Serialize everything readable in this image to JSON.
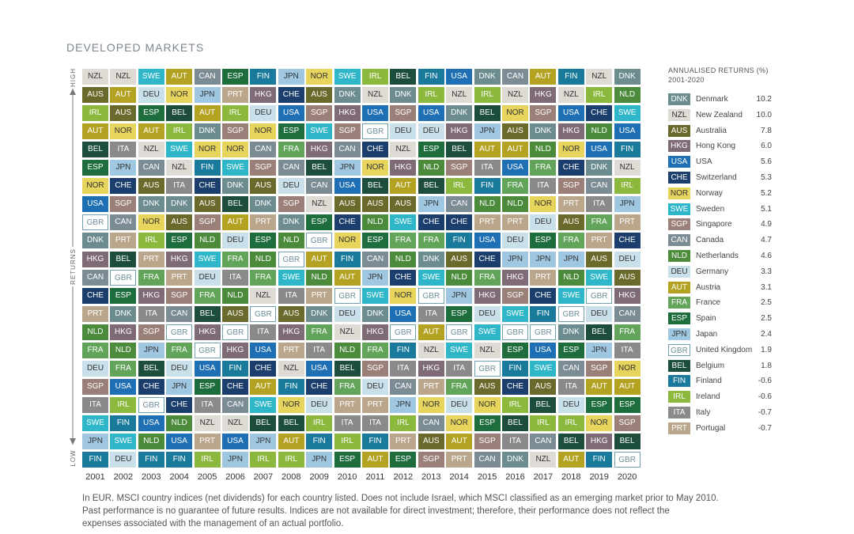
{
  "title": "DEVELOPED MARKETS",
  "axis": {
    "high": "HIGH",
    "returns": "RETURNS",
    "low": "LOW"
  },
  "years": [
    "2001",
    "2002",
    "2003",
    "2004",
    "2005",
    "2006",
    "2007",
    "2008",
    "2009",
    "2010",
    "2011",
    "2012",
    "2013",
    "2014",
    "2015",
    "2016",
    "2017",
    "2018",
    "2019",
    "2020"
  ],
  "rows": [
    [
      "NZL",
      "NZL",
      "SWE",
      "AUT",
      "CAN",
      "ESP",
      "FIN",
      "JPN",
      "NOR",
      "SWE",
      "IRL",
      "BEL",
      "FIN",
      "USA",
      "DNK",
      "CAN",
      "AUT",
      "FIN",
      "NZL",
      "DNK"
    ],
    [
      "AUS",
      "AUT",
      "DEU",
      "NOR",
      "JPN",
      "PRT",
      "HKG",
      "CHE",
      "AUS",
      "DNK",
      "NZL",
      "DNK",
      "IRL",
      "NZL",
      "IRL",
      "NZL",
      "HKG",
      "NZL",
      "IRL",
      "NLD"
    ],
    [
      "IRL",
      "AUS",
      "ESP",
      "BEL",
      "AUT",
      "IRL",
      "DEU",
      "USA",
      "SGP",
      "HKG",
      "USA",
      "SGP",
      "USA",
      "DNK",
      "BEL",
      "NOR",
      "SGP",
      "USA",
      "CHE",
      "SWE"
    ],
    [
      "AUT",
      "NOR",
      "AUT",
      "IRL",
      "DNK",
      "SGP",
      "NOR",
      "ESP",
      "SWE",
      "SGP",
      "GBR",
      "DEU",
      "DEU",
      "HKG",
      "JPN",
      "AUS",
      "DNK",
      "HKG",
      "NLD",
      "USA"
    ],
    [
      "BEL",
      "ITA",
      "NZL",
      "SWE",
      "NOR",
      "NOR",
      "CAN",
      "FRA",
      "HKG",
      "CAN",
      "CHE",
      "NZL",
      "ESP",
      "BEL",
      "AUT",
      "AUT",
      "NLD",
      "NOR",
      "USA",
      "FIN"
    ],
    [
      "ESP",
      "JPN",
      "CAN",
      "NZL",
      "FIN",
      "SWE",
      "SGP",
      "CAN",
      "BEL",
      "JPN",
      "NOR",
      "HKG",
      "NLD",
      "SGP",
      "ITA",
      "USA",
      "FRA",
      "CHE",
      "DNK",
      "NZL"
    ],
    [
      "NOR",
      "CHE",
      "AUS",
      "ITA",
      "CHE",
      "DNK",
      "AUS",
      "DEU",
      "CAN",
      "USA",
      "BEL",
      "AUT",
      "BEL",
      "IRL",
      "FIN",
      "FRA",
      "ITA",
      "SGP",
      "CAN",
      "IRL"
    ],
    [
      "USA",
      "SGP",
      "DNK",
      "DNK",
      "AUS",
      "BEL",
      "DNK",
      "SGP",
      "NZL",
      "AUS",
      "AUS",
      "AUS",
      "JPN",
      "CAN",
      "NLD",
      "NLD",
      "NOR",
      "PRT",
      "ITA",
      "JPN"
    ],
    [
      "GBR",
      "CAN",
      "NOR",
      "AUS",
      "SGP",
      "AUT",
      "PRT",
      "DNK",
      "ESP",
      "CHE",
      "NLD",
      "SWE",
      "CHE",
      "CHE",
      "PRT",
      "PRT",
      "DEU",
      "AUS",
      "FRA",
      "PRT"
    ],
    [
      "DNK",
      "PRT",
      "IRL",
      "ESP",
      "NLD",
      "DEU",
      "ESP",
      "NLD",
      "GBR",
      "NOR",
      "ESP",
      "FRA",
      "FRA",
      "FIN",
      "USA",
      "DEU",
      "ESP",
      "FRA",
      "PRT",
      "CHE"
    ],
    [
      "HKG",
      "BEL",
      "PRT",
      "HKG",
      "SWE",
      "FRA",
      "NLD",
      "GBR",
      "AUT",
      "FIN",
      "CAN",
      "NLD",
      "DNK",
      "AUS",
      "CHE",
      "JPN",
      "JPN",
      "JPN",
      "AUS",
      "DEU"
    ],
    [
      "CAN",
      "GBR",
      "FRA",
      "PRT",
      "DEU",
      "ITA",
      "FRA",
      "SWE",
      "NLD",
      "AUT",
      "JPN",
      "CHE",
      "SWE",
      "NLD",
      "FRA",
      "HKG",
      "PRT",
      "NLD",
      "SWE",
      "AUS"
    ],
    [
      "CHE",
      "ESP",
      "HKG",
      "SGP",
      "FRA",
      "NLD",
      "NZL",
      "ITA",
      "PRT",
      "GBR",
      "SWE",
      "NOR",
      "GBR",
      "JPN",
      "HKG",
      "SGP",
      "CHE",
      "SWE",
      "GBR",
      "HKG"
    ],
    [
      "PRT",
      "DNK",
      "ITA",
      "CAN",
      "BEL",
      "AUS",
      "GBR",
      "AUS",
      "DNK",
      "DEU",
      "DNK",
      "USA",
      "ITA",
      "ESP",
      "DEU",
      "SWE",
      "FIN",
      "GBR",
      "DEU",
      "CAN"
    ],
    [
      "NLD",
      "HKG",
      "SGP",
      "GBR",
      "HKG",
      "GBR",
      "ITA",
      "HKG",
      "FRA",
      "NZL",
      "HKG",
      "GBR",
      "AUT",
      "GBR",
      "SWE",
      "GBR",
      "GBR",
      "DNK",
      "BEL",
      "FRA"
    ],
    [
      "FRA",
      "NLD",
      "JPN",
      "FRA",
      "GBR",
      "HKG",
      "USA",
      "PRT",
      "ITA",
      "NLD",
      "FRA",
      "FIN",
      "NZL",
      "SWE",
      "NZL",
      "ESP",
      "USA",
      "ESP",
      "JPN",
      "ITA"
    ],
    [
      "DEU",
      "FRA",
      "BEL",
      "DEU",
      "USA",
      "FIN",
      "CHE",
      "NZL",
      "USA",
      "BEL",
      "SGP",
      "ITA",
      "HKG",
      "ITA",
      "GBR",
      "FIN",
      "SWE",
      "CAN",
      "SGP",
      "NOR"
    ],
    [
      "SGP",
      "USA",
      "CHE",
      "JPN",
      "ESP",
      "CHE",
      "AUT",
      "FIN",
      "CHE",
      "FRA",
      "DEU",
      "CAN",
      "PRT",
      "FRA",
      "AUS",
      "CHE",
      "AUS",
      "ITA",
      "AUT",
      "AUT"
    ],
    [
      "ITA",
      "IRL",
      "GBR",
      "CHE",
      "ITA",
      "CAN",
      "SWE",
      "NOR",
      "DEU",
      "PRT",
      "PRT",
      "JPN",
      "NOR",
      "DEU",
      "NOR",
      "IRL",
      "BEL",
      "DEU",
      "ESP",
      "ESP"
    ],
    [
      "SWE",
      "FIN",
      "USA",
      "NLD",
      "NZL",
      "NZL",
      "BEL",
      "BEL",
      "IRL",
      "ITA",
      "ITA",
      "IRL",
      "CAN",
      "NOR",
      "ESP",
      "BEL",
      "IRL",
      "IRL",
      "NOR",
      "SGP"
    ],
    [
      "JPN",
      "SWE",
      "NLD",
      "USA",
      "PRT",
      "USA",
      "JPN",
      "AUT",
      "FIN",
      "IRL",
      "FIN",
      "PRT",
      "AUS",
      "AUT",
      "SGP",
      "ITA",
      "CAN",
      "BEL",
      "HKG",
      "BEL"
    ],
    [
      "FIN",
      "DEU",
      "FIN",
      "FIN",
      "IRL",
      "JPN",
      "IRL",
      "IRL",
      "JPN",
      "ESP",
      "AUT",
      "ESP",
      "SGP",
      "PRT",
      "CAN",
      "DNK",
      "NZL",
      "AUT",
      "FIN",
      "GBR"
    ]
  ],
  "legend": {
    "heading": [
      "ANNUALISED RETURNS (%)",
      "2001-2020"
    ],
    "items": [
      {
        "code": "DNK",
        "name": "Denmark",
        "value": "10.2",
        "color": "#6d8c90"
      },
      {
        "code": "NZL",
        "name": "New Zealand",
        "value": "10.0",
        "color": "#dedbd5"
      },
      {
        "code": "AUS",
        "name": "Australia",
        "value": "7.8",
        "color": "#6a6a2c"
      },
      {
        "code": "HKG",
        "name": "Hong Kong",
        "value": "6.0",
        "color": "#7e6b76"
      },
      {
        "code": "USA",
        "name": "USA",
        "value": "5.6",
        "color": "#1f6fb4"
      },
      {
        "code": "CHE",
        "name": "Switzerland",
        "value": "5.3",
        "color": "#1b3e6c"
      },
      {
        "code": "NOR",
        "name": "Norway",
        "value": "5.2",
        "color": "#e6d45c"
      },
      {
        "code": "SWE",
        "name": "Sweden",
        "value": "5.1",
        "color": "#2fb6c9"
      },
      {
        "code": "SGP",
        "name": "Singapore",
        "value": "4.9",
        "color": "#9b807a"
      },
      {
        "code": "CAN",
        "name": "Canada",
        "value": "4.7",
        "color": "#7b8c94"
      },
      {
        "code": "NLD",
        "name": "Netherlands",
        "value": "4.6",
        "color": "#4b8b3b"
      },
      {
        "code": "DEU",
        "name": "Germany",
        "value": "3.3",
        "color": "#c9dfe9"
      },
      {
        "code": "AUT",
        "name": "Austria",
        "value": "3.1",
        "color": "#b4a222"
      },
      {
        "code": "FRA",
        "name": "France",
        "value": "2.5",
        "color": "#63a45b"
      },
      {
        "code": "ESP",
        "name": "Spain",
        "value": "2.5",
        "color": "#1e6d3d"
      },
      {
        "code": "JPN",
        "name": "Japan",
        "value": "2.4",
        "color": "#a0c7e1"
      },
      {
        "code": "GBR",
        "name": "United Kingdom",
        "value": "1.9",
        "color": "#ffffff"
      },
      {
        "code": "BEL",
        "name": "Belgium",
        "value": "1.8",
        "color": "#1d4e3b"
      },
      {
        "code": "FIN",
        "name": "Finland",
        "value": "-0.6",
        "color": "#1a7a9b"
      },
      {
        "code": "IRL",
        "name": "Ireland",
        "value": "-0.6",
        "color": "#8cb83d"
      },
      {
        "code": "ITA",
        "name": "Italy",
        "value": "-0.7",
        "color": "#8a8a8a"
      },
      {
        "code": "PRT",
        "name": "Portugal",
        "value": "-0.7",
        "color": "#b9a68b"
      }
    ]
  },
  "footnote": [
    "In EUR. MSCI country indices (net dividends) for each country listed. Does not include Israel, which MSCI classified as an emerging market prior to May 2010.",
    "Past performance is no guarantee of future results. Indices are not available for direct investment; therefore, their performance does not reflect the",
    "expenses associated with the management of an actual portfolio."
  ]
}
